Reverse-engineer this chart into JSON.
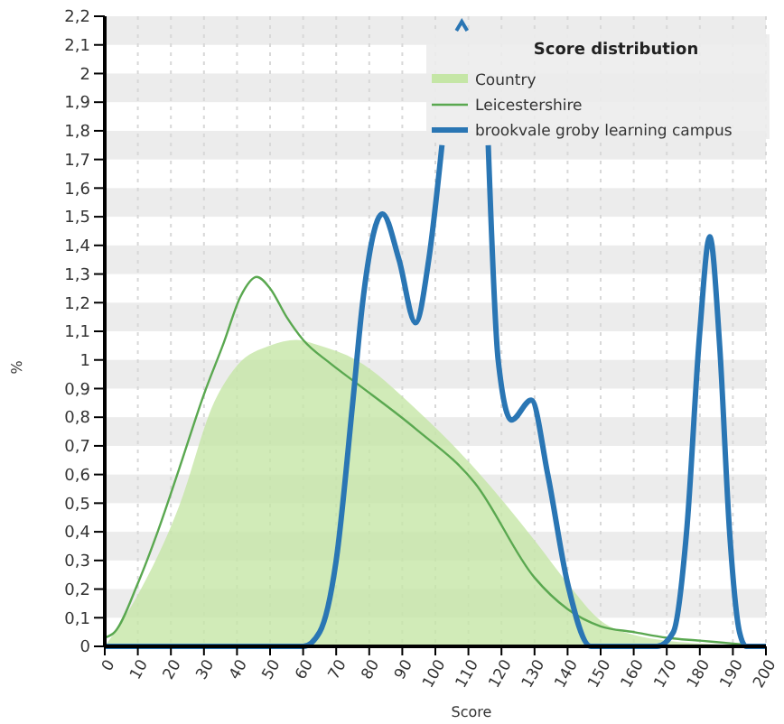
{
  "chart_data": {
    "type": "line",
    "xlabel": "Score",
    "ylabel": "%",
    "legend_title": "Score distribution",
    "legend": "top right",
    "grid": true,
    "marker": "none",
    "xlim": [
      0,
      200
    ],
    "xticks": [
      0,
      10,
      20,
      30,
      40,
      50,
      60,
      70,
      80,
      90,
      100,
      110,
      120,
      130,
      140,
      150,
      160,
      170,
      180,
      190,
      200
    ],
    "ylim": [
      0,
      2.2
    ],
    "yticks": [
      0,
      {
        "value": 0.1,
        "label": "0,1"
      },
      {
        "value": 0.2,
        "label": "0,2"
      },
      {
        "value": 0.3,
        "label": "0,3"
      },
      {
        "value": 0.4,
        "label": "0,4"
      },
      {
        "value": 0.5,
        "label": "0,5"
      },
      {
        "value": 0.6,
        "label": "0,6"
      },
      {
        "value": 0.7,
        "label": "0,7"
      },
      {
        "value": 0.8,
        "label": "0,8"
      },
      {
        "value": 0.9,
        "label": "0,9"
      },
      1,
      {
        "value": 1.1,
        "label": "1,1"
      },
      {
        "value": 1.2,
        "label": "1,2"
      },
      {
        "value": 1.3,
        "label": "1,3"
      },
      {
        "value": 1.4,
        "label": "1,4"
      },
      {
        "value": 1.5,
        "label": "1,5"
      },
      {
        "value": 1.6,
        "label": "1,6"
      },
      {
        "value": 1.7,
        "label": "1,7"
      },
      {
        "value": 1.8,
        "label": "1,8"
      },
      {
        "value": 1.9,
        "label": "1,9"
      },
      2,
      {
        "value": 2.1,
        "label": "2,1"
      },
      {
        "value": 2.2,
        "label": "2,2"
      }
    ],
    "series": [
      {
        "name": "Country",
        "type": "area",
        "color": "#c5e6a6",
        "x": [
          0,
          10,
          22.5,
          33,
          40,
          50,
          58,
          65,
          76,
          94,
          112,
          130,
          140,
          150,
          160,
          170,
          180,
          190,
          200
        ],
        "values": [
          0,
          0.18,
          0.49,
          0.85,
          0.98,
          1.05,
          1.07,
          1.05,
          1.0,
          0.83,
          0.62,
          0.37,
          0.22,
          0.09,
          0.04,
          0.02,
          0.01,
          0.005,
          0
        ]
      },
      {
        "name": "Leicestershire",
        "color": "#5aa850",
        "x": [
          0,
          3,
          10,
          16,
          22.5,
          30,
          36,
          41,
          46,
          50,
          55,
          60,
          68,
          76,
          94,
          112,
          130,
          140,
          150,
          160,
          170,
          180,
          190,
          200
        ],
        "values": [
          0.03,
          0.05,
          0.22,
          0.4,
          0.62,
          0.88,
          1.06,
          1.22,
          1.29,
          1.25,
          1.15,
          1.07,
          0.99,
          0.92,
          0.76,
          0.57,
          0.24,
          0.13,
          0.07,
          0.05,
          0.03,
          0.02,
          0.01,
          0
        ]
      },
      {
        "name": "brookvale groby learning campus",
        "color": "#2a76b4",
        "x": [
          0,
          60,
          65,
          70,
          75,
          78,
          84,
          89,
          94,
          98,
          102,
          106,
          110,
          116,
          119,
          123,
          129,
          134,
          140,
          147,
          167,
          172,
          176,
          180,
          183,
          186,
          189,
          192,
          194,
          200
        ],
        "values": [
          0,
          0,
          0.05,
          0.3,
          0.85,
          1.2,
          1.51,
          1.35,
          1.13,
          1.35,
          1.75,
          null,
          null,
          1.75,
          1.0,
          0.79,
          0.86,
          0.6,
          0.22,
          0,
          0,
          0.05,
          0.4,
          1.1,
          1.43,
          1.05,
          0.4,
          0.05,
          0,
          0
        ]
      }
    ]
  }
}
